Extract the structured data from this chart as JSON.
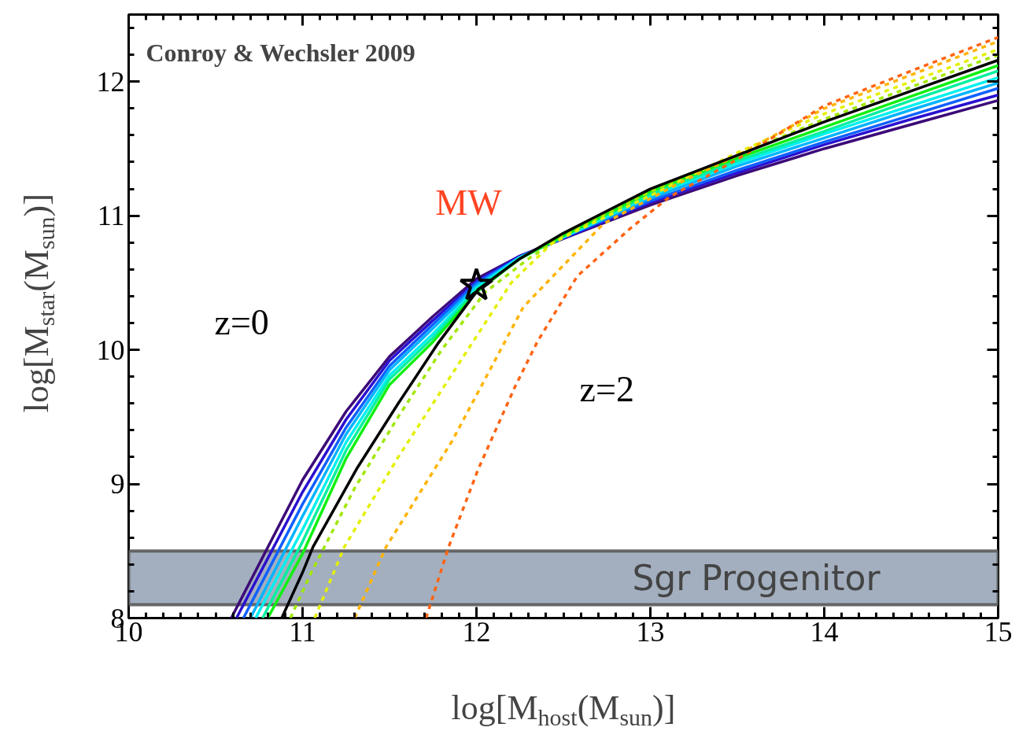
{
  "chart_data": {
    "type": "line",
    "xlabel": "log[M$_{host}$(M$_{sun}$)]",
    "ylabel": "log[M$_{star}$(M$_{sun}$)]",
    "xlim": [
      10,
      15
    ],
    "ylim": [
      8,
      12.5
    ],
    "xticks": [
      10,
      11,
      12,
      13,
      14,
      15
    ],
    "yticks": [
      8,
      9,
      10,
      11,
      12
    ],
    "grid": false,
    "marker": "none",
    "series": [
      {
        "color": "#3c0a78",
        "line_style": "solid",
        "x": [
          10.59,
          11.0,
          11.25,
          11.5,
          11.75,
          12.0,
          12.25,
          12.5,
          13.0,
          13.5,
          14.0,
          14.5,
          15.0
        ],
        "values": [
          8.0,
          9.03,
          9.54,
          9.95,
          10.25,
          10.53,
          10.7,
          10.83,
          11.08,
          11.3,
          11.5,
          11.68,
          11.86
        ]
      },
      {
        "color": "#2a10d0",
        "line_style": "solid",
        "x": [
          10.62,
          11.0,
          11.25,
          11.5,
          11.75,
          12.0,
          12.25,
          12.5,
          13.0,
          13.5,
          14.0,
          14.5,
          15.0
        ],
        "values": [
          8.0,
          8.94,
          9.48,
          9.92,
          10.22,
          10.51,
          10.7,
          10.83,
          11.1,
          11.32,
          11.53,
          11.72,
          11.9
        ]
      },
      {
        "color": "#1060ff",
        "line_style": "solid",
        "x": [
          10.66,
          11.0,
          11.25,
          11.5,
          11.75,
          12.0,
          12.25,
          12.5,
          13.0,
          13.5,
          14.0,
          14.5,
          15.0
        ],
        "values": [
          8.0,
          8.85,
          9.42,
          9.88,
          10.19,
          10.5,
          10.69,
          10.84,
          11.11,
          11.34,
          11.55,
          11.75,
          11.95
        ]
      },
      {
        "color": "#00b4ff",
        "line_style": "solid",
        "x": [
          10.7,
          11.0,
          11.25,
          11.5,
          11.75,
          12.0,
          12.25,
          12.5,
          13.0,
          13.5,
          14.0,
          14.5,
          15.0
        ],
        "values": [
          8.0,
          8.76,
          9.37,
          9.85,
          10.16,
          10.48,
          10.69,
          10.84,
          11.13,
          11.37,
          11.58,
          11.79,
          11.99
        ]
      },
      {
        "color": "#00f0f0",
        "line_style": "solid",
        "x": [
          10.73,
          11.0,
          11.25,
          11.5,
          11.75,
          12.0,
          12.25,
          12.5,
          13.0,
          13.5,
          14.0,
          14.5,
          15.0
        ],
        "values": [
          8.0,
          8.66,
          9.31,
          9.81,
          10.12,
          10.46,
          10.69,
          10.84,
          11.15,
          11.39,
          11.61,
          11.82,
          12.03
        ]
      },
      {
        "color": "#00f0a0",
        "line_style": "solid",
        "x": [
          10.77,
          11.0,
          11.25,
          11.5,
          11.75,
          12.0,
          12.25,
          12.5,
          13.0,
          13.5,
          14.0,
          14.5,
          15.0
        ],
        "values": [
          8.0,
          8.57,
          9.25,
          9.78,
          10.09,
          10.45,
          10.68,
          10.85,
          11.16,
          11.41,
          11.63,
          11.86,
          12.08
        ]
      },
      {
        "color": "#10f010",
        "line_style": "solid",
        "x": [
          10.8,
          11.0,
          11.25,
          11.5,
          11.75,
          12.0,
          12.25,
          12.5,
          13.0,
          13.5,
          14.0,
          14.5,
          15.0
        ],
        "values": [
          8.0,
          8.48,
          9.19,
          9.74,
          10.06,
          10.43,
          10.68,
          10.85,
          11.18,
          11.43,
          11.66,
          11.89,
          12.12
        ]
      },
      {
        "color": "#a0e800",
        "line_style": "dashed",
        "x": [
          10.93,
          11.05,
          11.3,
          11.55,
          11.8,
          12.05,
          12.3,
          12.5,
          13.0,
          14.0,
          15.0
        ],
        "values": [
          8.0,
          8.34,
          8.97,
          9.5,
          10.0,
          10.43,
          10.68,
          10.85,
          11.18,
          11.72,
          12.2
        ]
      },
      {
        "color": "#e4f000",
        "line_style": "dashed",
        "x": [
          11.07,
          11.24,
          11.55,
          11.86,
          12.2,
          12.43,
          12.58,
          13.0,
          13.5,
          14.0,
          14.5,
          15.0
        ],
        "values": [
          8.0,
          8.53,
          9.2,
          9.82,
          10.5,
          10.79,
          10.89,
          11.15,
          11.47,
          11.76,
          12.0,
          12.24
        ]
      },
      {
        "color": "#ffb400",
        "line_style": "dashed",
        "x": [
          11.3,
          11.48,
          11.86,
          12.27,
          12.73,
          13.19,
          13.5,
          14.0,
          14.5,
          15.0
        ],
        "values": [
          8.0,
          8.53,
          9.32,
          10.32,
          10.94,
          11.26,
          11.45,
          11.8,
          12.05,
          12.3
        ]
      },
      {
        "color": "#ff6414",
        "line_style": "dashed",
        "x": [
          11.71,
          11.84,
          12.01,
          12.22,
          12.35,
          12.58,
          12.88,
          13.11,
          13.5,
          14.0,
          14.5,
          15.0
        ],
        "values": [
          8.0,
          8.53,
          9.11,
          9.72,
          10.06,
          10.55,
          10.9,
          11.14,
          11.42,
          11.82,
          12.08,
          12.33
        ]
      },
      {
        "color": "#000000",
        "line_style": "solid",
        "x": [
          10.88,
          11.0,
          11.06,
          11.31,
          11.55,
          11.78,
          12.01,
          12.25,
          12.5,
          13.0,
          13.5,
          14.0,
          14.5,
          15.0
        ],
        "values": [
          8.0,
          8.34,
          8.53,
          9.11,
          9.6,
          10.05,
          10.45,
          10.68,
          10.87,
          11.2,
          11.45,
          11.7,
          11.93,
          12.16
        ]
      },
      {
        "type": "scatter",
        "marker": "star",
        "color": "#000000",
        "x": [
          12.0
        ],
        "values": [
          10.48
        ]
      }
    ],
    "bands": [
      {
        "axis": "y",
        "from": 8.1,
        "to": 8.5,
        "label": "Sgr Progenitor",
        "color": "#a3afbf"
      }
    ],
    "annotations": [
      "Conroy & Wechsler 2009",
      {
        "text": "MW",
        "x": 12.0,
        "y": 10.48
      },
      "z=0",
      "z=2"
    ]
  }
}
